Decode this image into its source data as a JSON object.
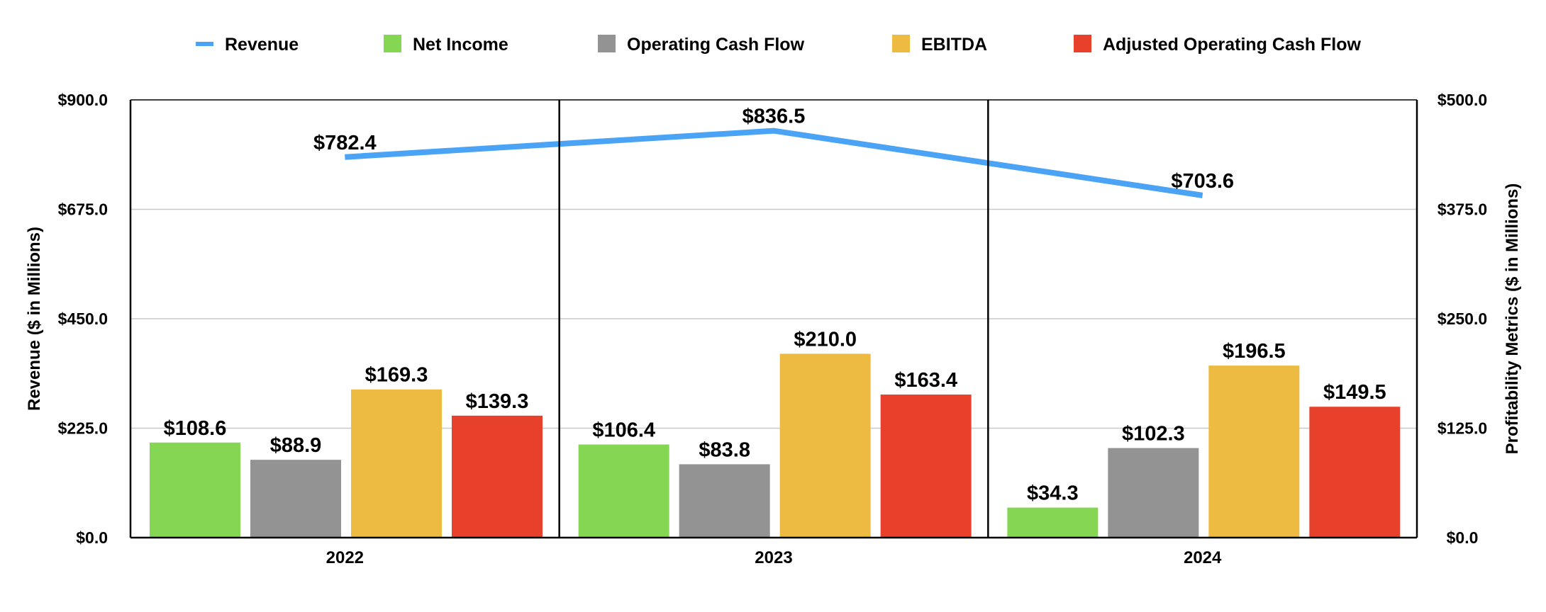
{
  "chart_data": {
    "type": "bar",
    "categories": [
      "2022",
      "2023",
      "2024"
    ],
    "line_series": {
      "name": "Revenue",
      "axis": "left",
      "values": [
        782.4,
        836.5,
        703.6
      ],
      "labels": [
        "$782.4",
        "$836.5",
        "$703.6"
      ],
      "color": "#4BA3F5"
    },
    "series": [
      {
        "name": "Net Income",
        "axis": "right",
        "values": [
          108.6,
          106.4,
          34.3
        ],
        "labels": [
          "$108.6",
          "$106.4",
          "$34.3"
        ],
        "color": "#84D653"
      },
      {
        "name": "Operating Cash Flow",
        "axis": "right",
        "values": [
          88.9,
          83.8,
          102.3
        ],
        "labels": [
          "$88.9",
          "$83.8",
          "$102.3"
        ],
        "color": "#939393"
      },
      {
        "name": "EBITDA",
        "axis": "right",
        "values": [
          169.3,
          210.0,
          196.5
        ],
        "labels": [
          "$169.3",
          "$210.0",
          "$196.5"
        ],
        "color": "#EDBA42"
      },
      {
        "name": "Adjusted Operating Cash Flow",
        "axis": "right",
        "values": [
          139.3,
          163.4,
          149.5
        ],
        "labels": [
          "$139.3",
          "$163.4",
          "$149.5"
        ],
        "color": "#E8412B"
      }
    ],
    "ylabel_left": "Revenue ($ in Millions)",
    "ylabel_right": "Profitability Metrics ($ in Millions)",
    "ylim_left": [
      0,
      900
    ],
    "ylim_right": [
      0,
      500
    ],
    "yticks_left": [
      "$0.0",
      "$225.0",
      "$450.0",
      "$675.0",
      "$900.0"
    ],
    "yticks_right": [
      "$0.0",
      "$125.0",
      "$250.0",
      "$375.0",
      "$500.0"
    ],
    "grid": true,
    "legend_position": "top"
  }
}
